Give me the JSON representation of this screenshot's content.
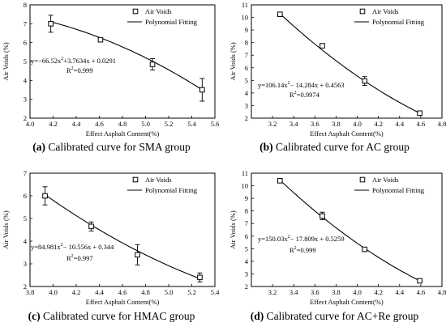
{
  "chart_data": [
    {
      "type": "scatter",
      "panel": "a",
      "caption_letter": "(a)",
      "caption_text": "Calibrated curve for SMA group",
      "xlabel": "Effect Asphalt Content(%)",
      "ylabel": "Air Voids (%)",
      "xlim": [
        4.0,
        5.6
      ],
      "ylim": [
        2,
        8
      ],
      "xticks": [
        4.0,
        4.2,
        4.4,
        4.6,
        4.8,
        5.0,
        5.2,
        5.4,
        5.6
      ],
      "yticks": [
        2,
        3,
        4,
        5,
        6,
        7,
        8
      ],
      "xtick_labels": [
        "4.0",
        "4.2",
        "4.4",
        "4.6",
        "4.8",
        "5.0",
        "5.2",
        "5.4",
        "5.6"
      ],
      "ytick_labels": [
        "2",
        "3",
        "4",
        "5",
        "6",
        "7",
        "8"
      ],
      "legend": [
        "Air Voids",
        "Polynomial Fitting"
      ],
      "legend_position": "top-right",
      "points": [
        {
          "x": 4.18,
          "y": 7.0,
          "err": 0.45
        },
        {
          "x": 4.61,
          "y": 6.15,
          "err": 0.05
        },
        {
          "x": 5.06,
          "y": 4.85,
          "err": 0.3
        },
        {
          "x": 5.49,
          "y": 3.5,
          "err": 0.6
        }
      ],
      "fit_coeffs": [
        -66.52,
        3.7634,
        0.0291
      ],
      "fit_range": [
        4.18,
        5.49
      ],
      "fit_endpoints": [
        7.1,
        3.5
      ],
      "eq_parts": [
        "y=−66.52x",
        "2",
        "+3.7634x + 0.0291"
      ],
      "r2_parts": [
        "R",
        "2",
        "=0.999"
      ]
    },
    {
      "type": "scatter",
      "panel": "b",
      "caption_letter": "(b)",
      "caption_text": "Calibrated curve for AC group",
      "xlabel": "Effect Asphalt Content(%)",
      "ylabel": "Air Voids (%)",
      "xlim": [
        3.0,
        4.8
      ],
      "ylim": [
        2,
        11
      ],
      "xticks": [
        3.2,
        3.4,
        3.6,
        3.8,
        4.0,
        4.2,
        4.4,
        4.6,
        4.8
      ],
      "yticks": [
        2,
        3,
        4,
        5,
        6,
        7,
        8,
        9,
        10,
        11
      ],
      "xtick_labels": [
        "3.2",
        "3.4",
        "3.6",
        "3.8",
        "4.0",
        "4.2",
        "4.4",
        "4.6",
        "4.8"
      ],
      "ytick_labels": [
        "2",
        "3",
        "4",
        "5",
        "6",
        "7",
        "8",
        "9",
        "10",
        "11"
      ],
      "legend": [
        "Air Voids",
        "Polynomial Fitting"
      ],
      "legend_position": "top-right",
      "points": [
        {
          "x": 3.27,
          "y": 10.25,
          "err": 0.05
        },
        {
          "x": 3.67,
          "y": 7.75,
          "err": 0.15
        },
        {
          "x": 4.07,
          "y": 4.95,
          "err": 0.35
        },
        {
          "x": 4.59,
          "y": 2.4,
          "err": 0.1
        }
      ],
      "fit_coeffs": [
        106.14,
        -14.284,
        0.4563
      ],
      "fit_range": [
        3.27,
        4.59
      ],
      "fit_endpoints": [
        10.3,
        2.4
      ],
      "eq_parts": [
        "y=106.14x",
        "2",
        "− 14.284x + 0.4563"
      ],
      "r2_parts": [
        "R",
        "2",
        "=0.9974"
      ]
    },
    {
      "type": "scatter",
      "panel": "c",
      "caption_letter": "(c)",
      "caption_text": "Calibrated curve for HMAC group",
      "xlabel": "Effect Asphalt Content(%)",
      "ylabel": "Air Voids (%)",
      "xlim": [
        3.8,
        5.4
      ],
      "ylim": [
        2,
        7
      ],
      "xticks": [
        3.8,
        4.0,
        4.2,
        4.4,
        4.6,
        4.8,
        5.0,
        5.2,
        5.4
      ],
      "yticks": [
        2,
        3,
        4,
        5,
        6,
        7
      ],
      "xtick_labels": [
        "3.8",
        "4.0",
        "4.2",
        "4.4",
        "4.6",
        "4.8",
        "5.0",
        "5.2",
        "5.4"
      ],
      "ytick_labels": [
        "2",
        "3",
        "4",
        "5",
        "6",
        "7"
      ],
      "legend": [
        "Air Voids",
        "Polynomial Fitting"
      ],
      "legend_position": "top-right",
      "points": [
        {
          "x": 3.93,
          "y": 6.0,
          "err": 0.4
        },
        {
          "x": 4.33,
          "y": 4.65,
          "err": 0.2
        },
        {
          "x": 4.73,
          "y": 3.4,
          "err": 0.45
        },
        {
          "x": 5.27,
          "y": 2.4,
          "err": 0.2
        }
      ],
      "fit_coeffs": [
        84.981,
        -10.556,
        0.344
      ],
      "fit_range": [
        3.93,
        5.27
      ],
      "fit_endpoints": [
        6.05,
        2.35
      ],
      "eq_parts": [
        "y=84.981x",
        "2",
        "− 10.556x + 0.344"
      ],
      "r2_parts": [
        "R",
        "2",
        "=0.997"
      ]
    },
    {
      "type": "scatter",
      "panel": "d",
      "caption_letter": "(d)",
      "caption_text": "Calibrated curve for AC+Re group",
      "xlabel": "Effect Asphalt Content(%)",
      "ylabel": "Air Voids (%)",
      "xlim": [
        3.0,
        4.8
      ],
      "ylim": [
        2,
        11
      ],
      "xticks": [
        3.2,
        3.4,
        3.6,
        3.8,
        4.0,
        4.2,
        4.4,
        4.6,
        4.8
      ],
      "yticks": [
        2,
        3,
        4,
        5,
        6,
        7,
        8,
        9,
        10,
        11
      ],
      "xtick_labels": [
        "3.2",
        "3.4",
        "3.6",
        "3.8",
        "4.0",
        "4.2",
        "4.4",
        "4.6",
        "4.8"
      ],
      "ytick_labels": [
        "2",
        "3",
        "4",
        "5",
        "6",
        "7",
        "8",
        "9",
        "10",
        "11"
      ],
      "legend": [
        "Air Voids",
        "Polynomial Fitting"
      ],
      "legend_position": "top-right",
      "points": [
        {
          "x": 3.27,
          "y": 10.4,
          "err": 0.05
        },
        {
          "x": 3.67,
          "y": 7.6,
          "err": 0.3
        },
        {
          "x": 4.07,
          "y": 4.95,
          "err": 0.1
        },
        {
          "x": 4.59,
          "y": 2.45,
          "err": 0.05
        }
      ],
      "fit_coeffs": [
        150.03,
        -17.809,
        0.5259
      ],
      "fit_range": [
        3.27,
        4.59
      ],
      "fit_endpoints": [
        10.45,
        2.45
      ],
      "eq_parts": [
        "y=150.03x",
        "2",
        "− 17.809x + 0.5259"
      ],
      "r2_parts": [
        "R",
        "2",
        "=0.999"
      ]
    }
  ]
}
